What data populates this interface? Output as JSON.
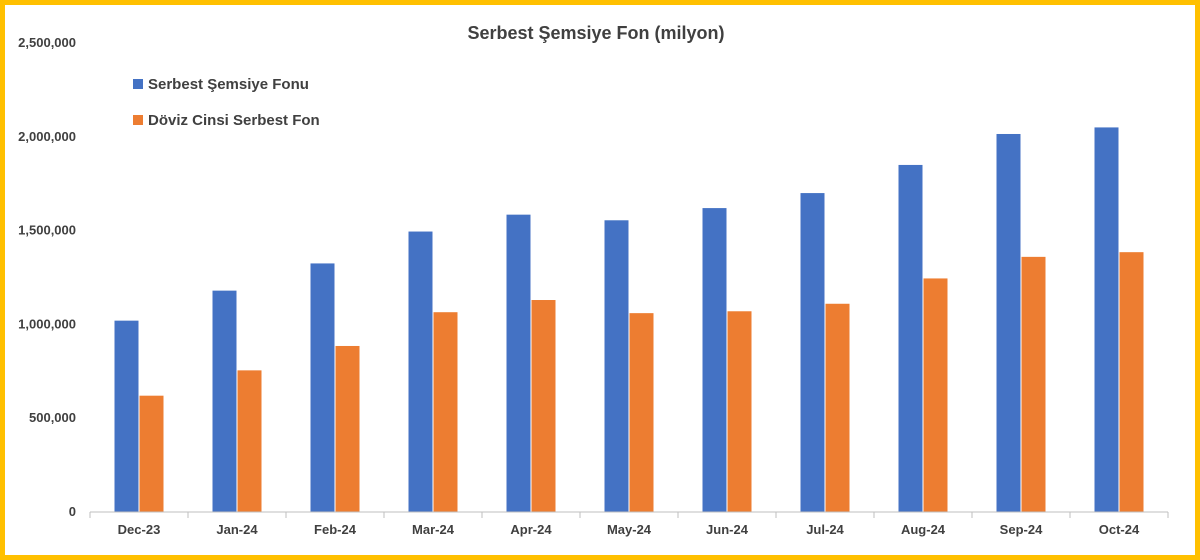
{
  "chart_data": {
    "type": "bar",
    "title": "Serbest Şemsiye Fon (milyon)",
    "xlabel": "",
    "ylabel": "",
    "ylim": [
      0,
      2500000
    ],
    "yticks": [
      0,
      500000,
      1000000,
      1500000,
      2000000,
      2500000
    ],
    "ytick_labels": [
      "0",
      "500,000",
      "1,000,000",
      "1,500,000",
      "2,000,000",
      "2,500,000"
    ],
    "grid": false,
    "legend_position": "top-left",
    "categories": [
      "Dec-23",
      "Jan-24",
      "Feb-24",
      "Mar-24",
      "Apr-24",
      "May-24",
      "Jun-24",
      "Jul-24",
      "Aug-24",
      "Sep-24",
      "Oct-24"
    ],
    "series": [
      {
        "name": "Serbest Şemsiye Fonu",
        "color": "#4472C4",
        "values": [
          1020000,
          1180000,
          1325000,
          1495000,
          1585000,
          1555000,
          1620000,
          1700000,
          1850000,
          2015000,
          2050000
        ]
      },
      {
        "name": "Döviz Cinsi Serbest Fon",
        "color": "#ED7D31",
        "values": [
          620000,
          755000,
          885000,
          1065000,
          1130000,
          1060000,
          1070000,
          1110000,
          1245000,
          1360000,
          1385000
        ]
      }
    ]
  },
  "frame_color": "#FFC000"
}
